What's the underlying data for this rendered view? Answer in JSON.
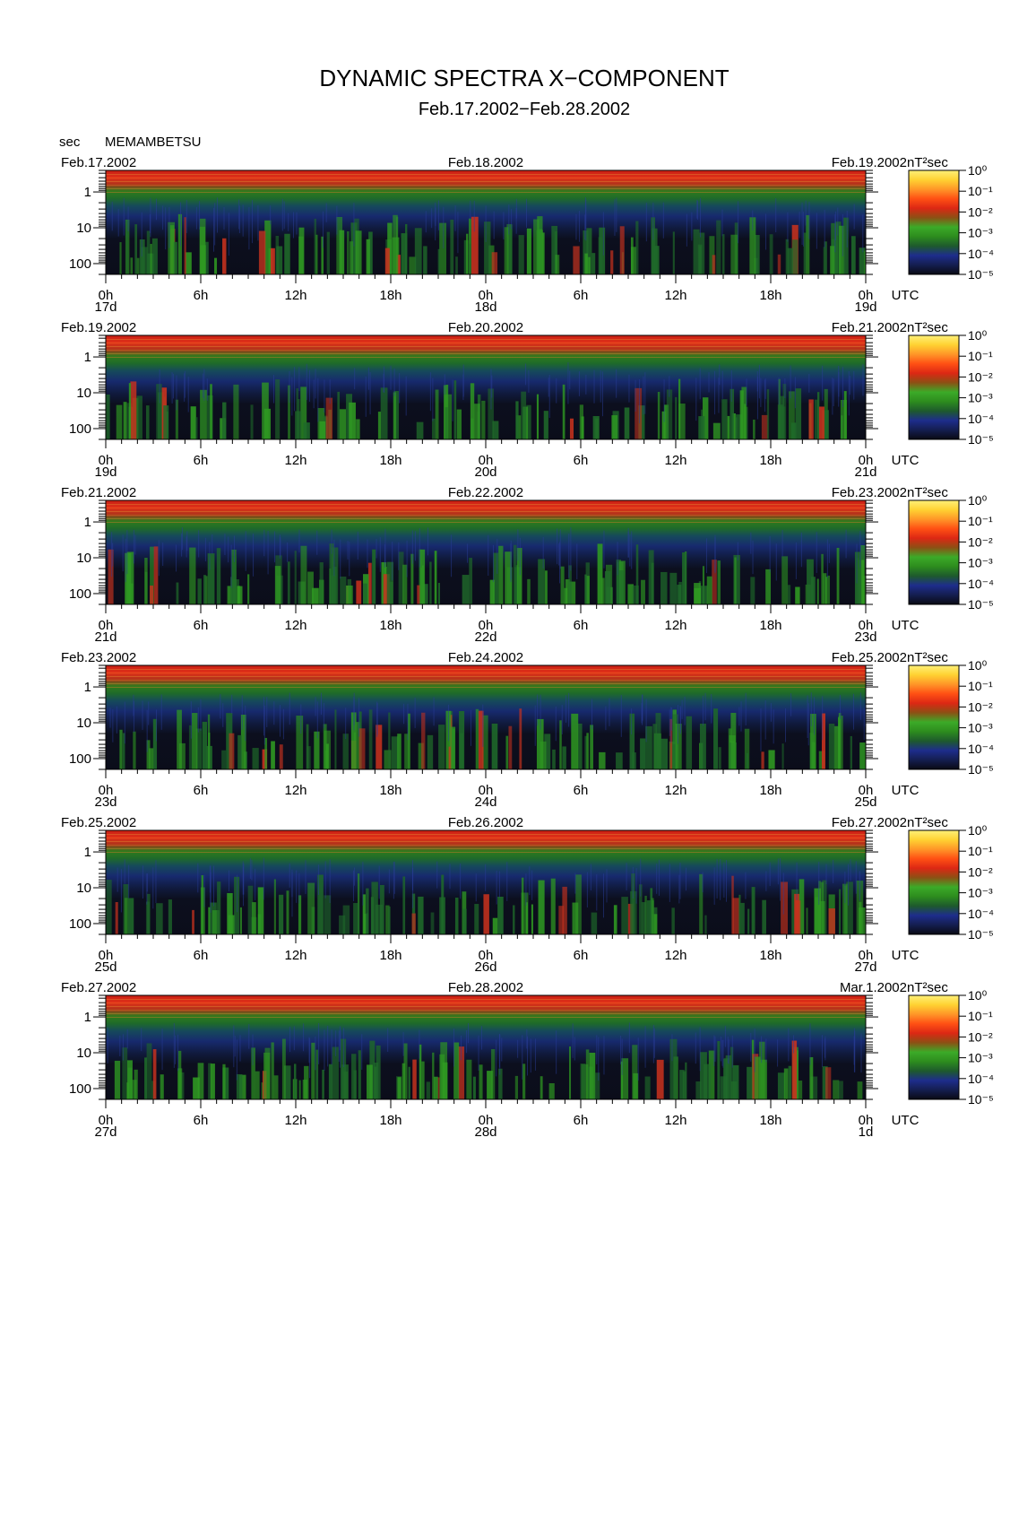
{
  "title": "DYNAMIC SPECTRA X−COMPONENT",
  "subtitle": "Feb.17.2002−Feb.28.2002",
  "y_unit": "sec",
  "station": "MEMAMBETSU",
  "colorbar_unit": "nT²sec",
  "colorbar_labels": [
    "10⁰",
    "10⁻¹",
    "10⁻²",
    "10⁻³",
    "10⁻⁴",
    "10⁻⁵"
  ],
  "colorscale": [
    "#0a0a14",
    "#141e50",
    "#1e2d8c",
    "#1e5a2d",
    "#2d8c1e",
    "#3caa28",
    "#8c5014",
    "#dc2814",
    "#ff5014",
    "#ff9628",
    "#ffd232",
    "#fff078"
  ],
  "time_unit": "UTC",
  "chart_data": [
    {
      "type": "heatmap",
      "date_left": "Feb.17.2002",
      "date_mid": "Feb.18.2002",
      "date_right": "Feb.19.2002",
      "day_left": "17d",
      "day_mid": "18d",
      "day_right": "19d",
      "x_ticks": [
        "0h",
        "6h",
        "12h",
        "18h",
        "0h",
        "6h",
        "12h",
        "18h",
        "0h"
      ],
      "y_ticks": [
        "1",
        "10",
        "100"
      ],
      "ylabel": "sec",
      "yscale": "log",
      "ylim_sec": [
        0.25,
        200
      ],
      "xlim_hours": [
        0,
        48
      ]
    },
    {
      "type": "heatmap",
      "date_left": "Feb.19.2002",
      "date_mid": "Feb.20.2002",
      "date_right": "Feb.21.2002",
      "day_left": "19d",
      "day_mid": "20d",
      "day_right": "21d",
      "x_ticks": [
        "0h",
        "6h",
        "12h",
        "18h",
        "0h",
        "6h",
        "12h",
        "18h",
        "0h"
      ],
      "y_ticks": [
        "1",
        "10",
        "100"
      ],
      "ylabel": "sec",
      "yscale": "log",
      "ylim_sec": [
        0.25,
        200
      ],
      "xlim_hours": [
        0,
        48
      ]
    },
    {
      "type": "heatmap",
      "date_left": "Feb.21.2002",
      "date_mid": "Feb.22.2002",
      "date_right": "Feb.23.2002",
      "day_left": "21d",
      "day_mid": "22d",
      "day_right": "23d",
      "x_ticks": [
        "0h",
        "6h",
        "12h",
        "18h",
        "0h",
        "6h",
        "12h",
        "18h",
        "0h"
      ],
      "y_ticks": [
        "1",
        "10",
        "100"
      ],
      "ylabel": "sec",
      "yscale": "log",
      "ylim_sec": [
        0.25,
        200
      ],
      "xlim_hours": [
        0,
        48
      ]
    },
    {
      "type": "heatmap",
      "date_left": "Feb.23.2002",
      "date_mid": "Feb.24.2002",
      "date_right": "Feb.25.2002",
      "day_left": "23d",
      "day_mid": "24d",
      "day_right": "25d",
      "x_ticks": [
        "0h",
        "6h",
        "12h",
        "18h",
        "0h",
        "6h",
        "12h",
        "18h",
        "0h"
      ],
      "y_ticks": [
        "1",
        "10",
        "100"
      ],
      "ylabel": "sec",
      "yscale": "log",
      "ylim_sec": [
        0.25,
        200
      ],
      "xlim_hours": [
        0,
        48
      ]
    },
    {
      "type": "heatmap",
      "date_left": "Feb.25.2002",
      "date_mid": "Feb.26.2002",
      "date_right": "Feb.27.2002",
      "day_left": "25d",
      "day_mid": "26d",
      "day_right": "27d",
      "x_ticks": [
        "0h",
        "6h",
        "12h",
        "18h",
        "0h",
        "6h",
        "12h",
        "18h",
        "0h"
      ],
      "y_ticks": [
        "1",
        "10",
        "100"
      ],
      "ylabel": "sec",
      "yscale": "log",
      "ylim_sec": [
        0.25,
        200
      ],
      "xlim_hours": [
        0,
        48
      ]
    },
    {
      "type": "heatmap",
      "date_left": "Feb.27.2002",
      "date_mid": "Feb.28.2002",
      "date_right": "Mar.1.2002",
      "day_left": "27d",
      "day_mid": "28d",
      "day_right": "1d",
      "x_ticks": [
        "0h",
        "6h",
        "12h",
        "18h",
        "0h",
        "6h",
        "12h",
        "18h",
        "0h"
      ],
      "y_ticks": [
        "1",
        "10",
        "100"
      ],
      "ylabel": "sec",
      "yscale": "log",
      "ylim_sec": [
        0.25,
        200
      ],
      "xlim_hours": [
        0,
        48
      ]
    }
  ]
}
